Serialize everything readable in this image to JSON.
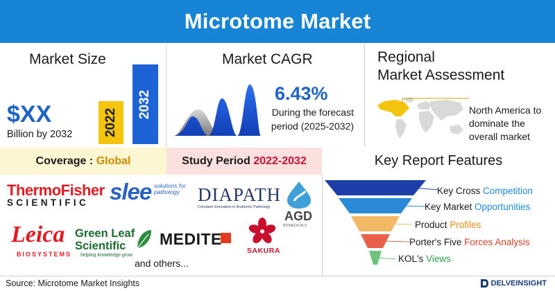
{
  "header": {
    "title": "Microtome Market"
  },
  "market_size": {
    "title": "Market Size",
    "value": "$XX",
    "subtitle": "Billion by 2032",
    "bars": [
      {
        "label": "2022",
        "color": "#f5c40f"
      },
      {
        "label": "2032",
        "color": "#1e63d6"
      }
    ]
  },
  "cagr": {
    "title": "Market CAGR",
    "value": "6.43%",
    "description": "During the forecast period (2025-2032)"
  },
  "regional": {
    "title_line1": "Regional",
    "title_line2": "Market Assessment",
    "note": "North America to dominate the overall market",
    "highlight_color": "#f5c40f"
  },
  "coverage": {
    "label": "Coverage : ",
    "value": "Global"
  },
  "study_period": {
    "label": "Study Period ",
    "value": "2022-2032"
  },
  "features": {
    "title": "Key Report Features",
    "items": [
      {
        "text": "Key Cross ",
        "highlight": "Competition",
        "color": "#1e3fa8"
      },
      {
        "text": "Key Market ",
        "highlight": "Opportunities",
        "color": "#2a8ad8"
      },
      {
        "text": "Product ",
        "highlight": "Profiles",
        "color": "#f2b866"
      },
      {
        "text": "Porter's Five ",
        "highlight": "Forces Analysis",
        "color": "#e8604a"
      },
      {
        "text": "KOL's ",
        "highlight": "Views",
        "color": "#6dc47a"
      }
    ]
  },
  "companies": {
    "thermo_top": "ThermoFisher",
    "thermo_bottom": "SCIENTIFIC",
    "slee": "slee",
    "slee_tag": "solutions for pathology",
    "diapath": "DIAPATH",
    "diapath_tag": "Constant innovation in Anatomic Pathology",
    "agd": "AGD",
    "agd_tag": "BIOMEDICALS",
    "leica": "Leica",
    "leica_sub": "BIOSYSTEMS",
    "greenleaf_1": "Green Leaf",
    "greenleaf_2": "Scientific",
    "greenleaf_tag": "helping knowledge grow",
    "medite": "MEDITE",
    "sakura": "SAKURA",
    "others": "and others..."
  },
  "footer": {
    "source": "Source: Microtome Market Insights",
    "brand": "DELVEINSIGHT"
  }
}
